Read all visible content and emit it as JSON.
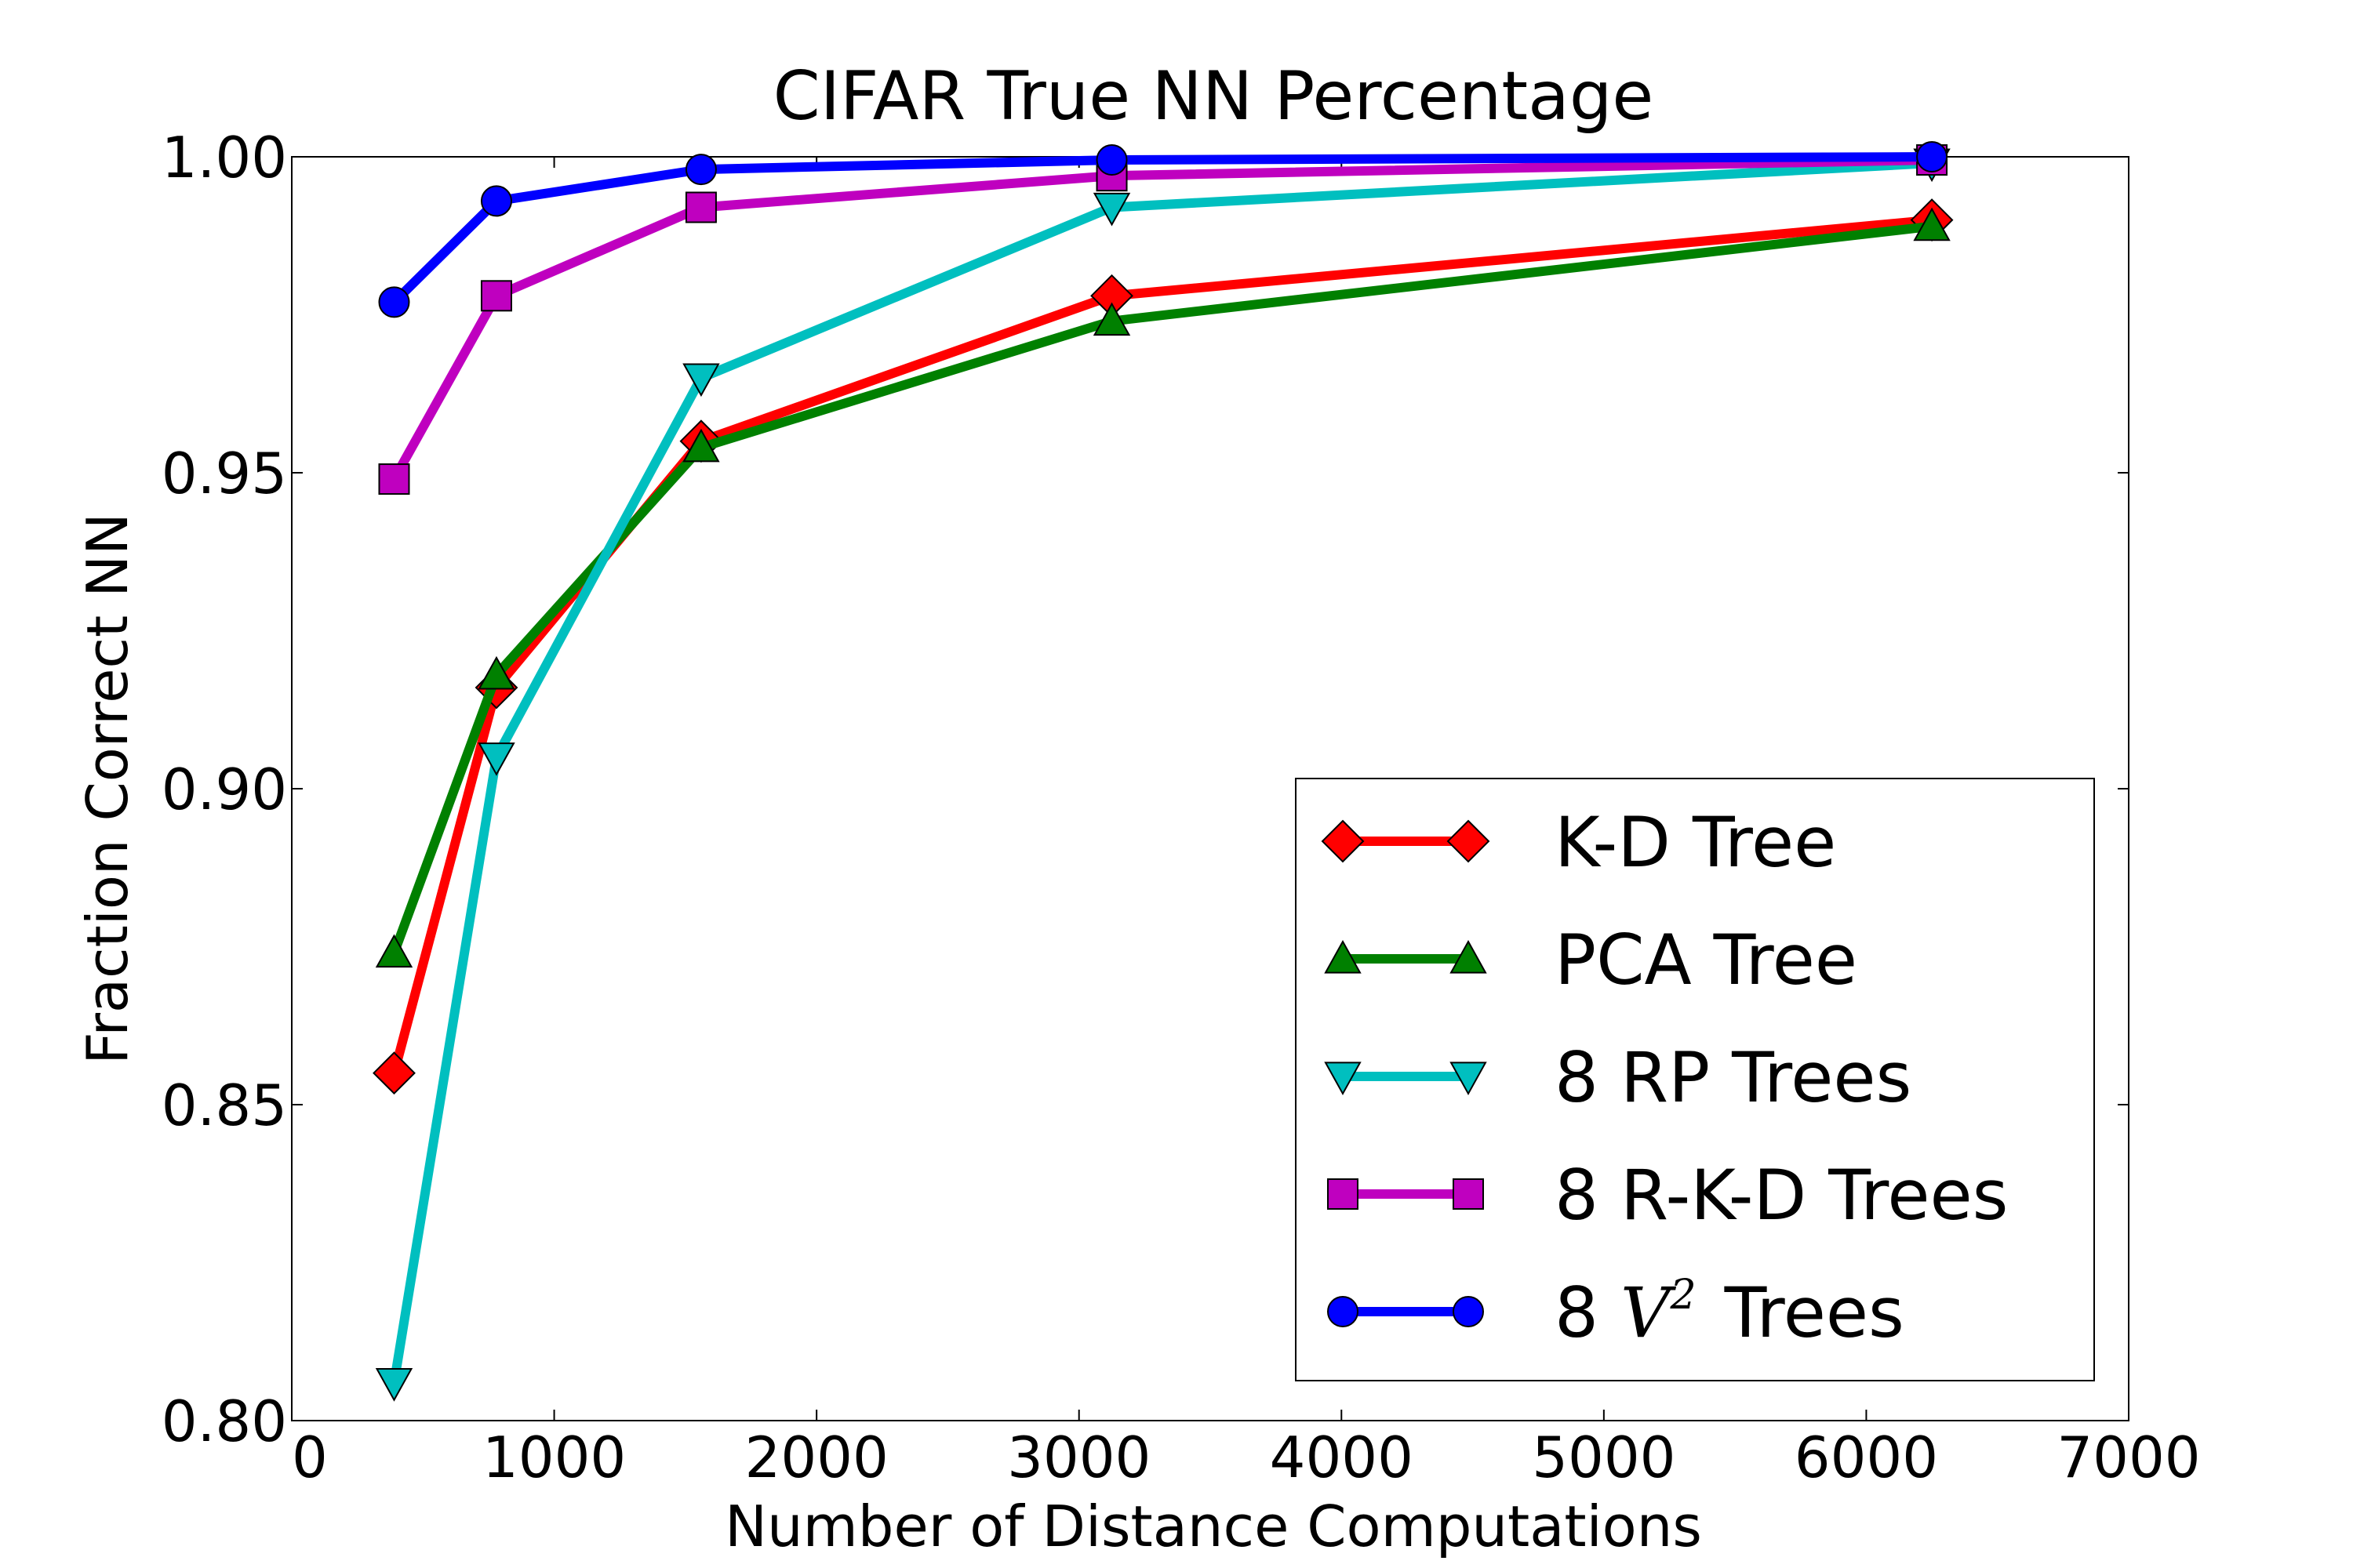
{
  "chart_data": {
    "type": "line",
    "title": "CIFAR True NN Percentage",
    "xlabel": "Number of Distance Computations",
    "ylabel": "Fraction Correct NN",
    "xlim": [
      0,
      7000
    ],
    "ylim": [
      0.8,
      1.0
    ],
    "xticks": [
      "0",
      "1000",
      "2000",
      "3000",
      "4000",
      "5000",
      "6000",
      "7000"
    ],
    "yticks": [
      "0.80",
      "0.85",
      "0.90",
      "0.95",
      "1.00"
    ],
    "grid": false,
    "legend_position": "lower-right",
    "x": [
      390,
      780,
      1560,
      3125,
      6250
    ],
    "series": [
      {
        "name": "K-D Tree",
        "color": "#ff0000",
        "marker": "diamond",
        "values": [
          0.855,
          0.916,
          0.955,
          0.978,
          0.99
        ]
      },
      {
        "name": "PCA Tree",
        "color": "#008000",
        "marker": "triangle-up",
        "values": [
          0.874,
          0.918,
          0.954,
          0.974,
          0.989
        ]
      },
      {
        "name": "8 RP Trees",
        "color": "#00bfbf",
        "marker": "triangle-down",
        "values": [
          0.806,
          0.905,
          0.965,
          0.992,
          0.999
        ]
      },
      {
        "name": "8 R-K-D Trees",
        "color": "#bf00bf",
        "marker": "square",
        "values": [
          0.949,
          0.978,
          0.992,
          0.997,
          0.9995
        ]
      },
      {
        "name": "8 V2 Trees",
        "color": "#0000ff",
        "marker": "circle",
        "values": [
          0.977,
          0.993,
          0.998,
          0.9995,
          1.0
        ],
        "label_prefix": "8",
        "label_symbol": "V",
        "label_sup": "2",
        "label_suffix": "Trees"
      }
    ]
  }
}
